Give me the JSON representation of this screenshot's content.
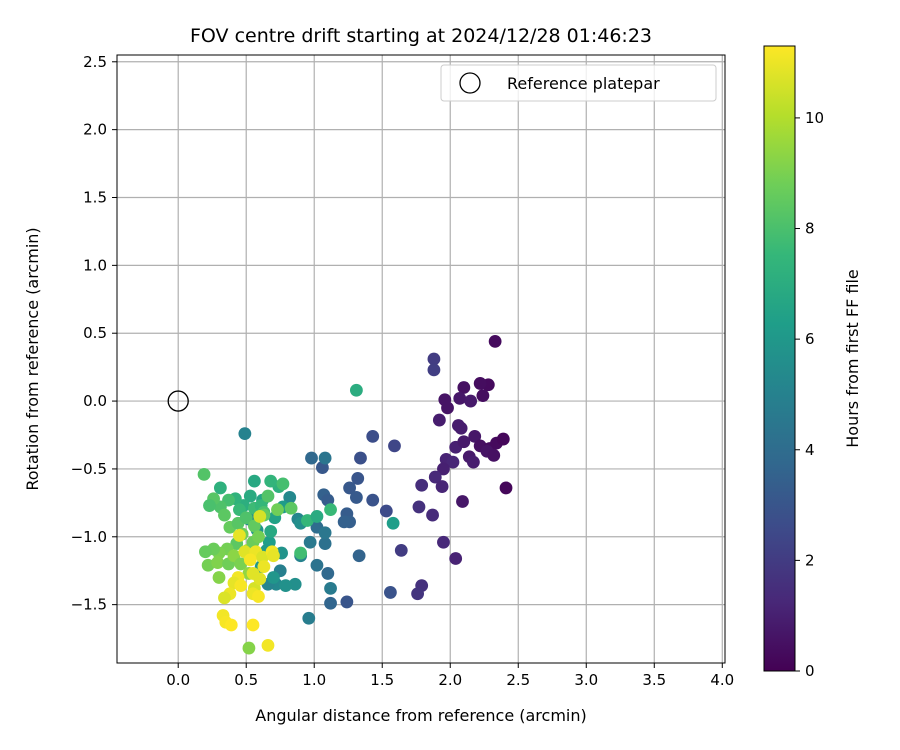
{
  "chart_data": {
    "type": "scatter",
    "title": "FOV centre drift starting at 2024/12/28 01:46:23",
    "xlabel": "Angular distance from reference (arcmin)",
    "ylabel": "Rotation from reference (arcmin)",
    "xlim": [
      -0.45,
      4.02
    ],
    "ylim": [
      -1.93,
      2.55
    ],
    "xticks": [
      0.0,
      0.5,
      1.0,
      1.5,
      2.0,
      2.5,
      3.0,
      3.5,
      4.0
    ],
    "xtick_labels": [
      "0.0",
      "0.5",
      "1.0",
      "1.5",
      "2.0",
      "2.5",
      "3.0",
      "3.5",
      "4.0"
    ],
    "yticks": [
      -1.5,
      -1.0,
      -0.5,
      0.0,
      0.5,
      1.0,
      1.5,
      2.0,
      2.5
    ],
    "ytick_labels": [
      "−1.5",
      "−1.0",
      "−0.5",
      "0.0",
      "0.5",
      "1.0",
      "1.5",
      "2.0",
      "2.5"
    ],
    "grid": true,
    "legend": {
      "position": "top-right",
      "entries": [
        "Reference platepar"
      ]
    },
    "reference_point": {
      "label": "Reference platepar",
      "x": 0.0,
      "y": 0.0
    },
    "colorbar": {
      "label": "Hours from first FF file",
      "colormap": "viridis",
      "range": [
        0,
        11.3
      ],
      "ticks": [
        0,
        2,
        4,
        6,
        8,
        10
      ],
      "tick_labels": [
        "0",
        "2",
        "4",
        "6",
        "8",
        "10"
      ]
    },
    "colormap_stops": [
      "#440154",
      "#482878",
      "#3e4989",
      "#31688e",
      "#26828e",
      "#1f9e89",
      "#35b779",
      "#6ece58",
      "#b5de2b",
      "#fde725"
    ],
    "series": [
      {
        "points": [
          [
            2.33,
            0.44,
            0.3
          ],
          [
            2.28,
            0.12,
            0.3
          ],
          [
            2.22,
            0.13,
            0.4
          ],
          [
            2.1,
            0.1,
            0.5
          ],
          [
            1.96,
            0.01,
            0.6
          ],
          [
            2.07,
            0.02,
            0.7
          ],
          [
            2.15,
            0.0,
            0.8
          ],
          [
            1.98,
            -0.05,
            0.6
          ],
          [
            2.24,
            0.04,
            0.4
          ],
          [
            1.92,
            -0.14,
            0.9
          ],
          [
            2.06,
            -0.18,
            0.9
          ],
          [
            2.18,
            -0.26,
            0.7
          ],
          [
            2.22,
            -0.33,
            0.5
          ],
          [
            2.29,
            -0.35,
            0.4
          ],
          [
            2.34,
            -0.31,
            0.3
          ],
          [
            2.39,
            -0.28,
            0.2
          ],
          [
            2.27,
            -0.37,
            0.6
          ],
          [
            2.32,
            -0.4,
            0.5
          ],
          [
            2.14,
            -0.41,
            0.8
          ],
          [
            2.17,
            -0.45,
            0.9
          ],
          [
            2.04,
            -0.34,
            1.0
          ],
          [
            2.1,
            -0.3,
            0.8
          ],
          [
            1.97,
            -0.43,
            1.1
          ],
          [
            2.02,
            -0.45,
            1.2
          ],
          [
            2.41,
            -0.64,
            0.2
          ],
          [
            2.08,
            -0.2,
            0.9
          ],
          [
            1.95,
            -0.5,
            1.0
          ],
          [
            1.89,
            -0.56,
            1.3
          ],
          [
            1.79,
            -0.62,
            1.5
          ],
          [
            1.94,
            -0.63,
            1.2
          ],
          [
            2.09,
            -0.74,
            0.7
          ],
          [
            1.77,
            -0.78,
            1.6
          ],
          [
            1.87,
            -0.84,
            1.4
          ],
          [
            1.95,
            -1.04,
            1.3
          ],
          [
            2.04,
            -1.16,
            1.1
          ],
          [
            1.79,
            -1.36,
            1.6
          ],
          [
            1.76,
            -1.42,
            1.7
          ],
          [
            1.88,
            0.31,
            2.0
          ],
          [
            1.88,
            0.23,
            2.1
          ],
          [
            1.64,
            -1.1,
            2.0
          ],
          [
            1.59,
            -0.33,
            2.4
          ],
          [
            1.43,
            -0.26,
            2.7
          ],
          [
            1.34,
            -0.42,
            2.8
          ],
          [
            1.32,
            -0.57,
            3.0
          ],
          [
            1.26,
            -0.64,
            3.1
          ],
          [
            1.31,
            -0.71,
            3.2
          ],
          [
            1.43,
            -0.73,
            2.9
          ],
          [
            1.53,
            -0.81,
            2.6
          ],
          [
            1.24,
            -0.83,
            3.3
          ],
          [
            1.26,
            -0.89,
            3.4
          ],
          [
            1.22,
            -0.89,
            3.5
          ],
          [
            1.33,
            -1.14,
            3.6
          ],
          [
            1.56,
            -1.41,
            2.9
          ],
          [
            1.24,
            -1.48,
            3.0
          ],
          [
            1.12,
            -1.49,
            3.7
          ],
          [
            1.1,
            -1.27,
            3.8
          ],
          [
            1.12,
            -1.38,
            4.7
          ],
          [
            1.08,
            -1.05,
            4.2
          ],
          [
            1.02,
            -0.93,
            4.0
          ],
          [
            1.07,
            -0.69,
            3.5
          ],
          [
            1.1,
            -0.73,
            3.3
          ],
          [
            1.06,
            -0.49,
            3.1
          ],
          [
            0.98,
            -0.42,
            3.8
          ],
          [
            1.08,
            -0.42,
            4.4
          ],
          [
            1.08,
            -0.97,
            4.5
          ],
          [
            1.02,
            -1.21,
            4.3
          ],
          [
            0.97,
            -1.04,
            4.6
          ],
          [
            0.9,
            -1.14,
            5.0
          ],
          [
            0.96,
            -1.6,
            4.8
          ],
          [
            0.86,
            -1.35,
            5.6
          ],
          [
            0.75,
            -1.25,
            4.9
          ],
          [
            0.72,
            -1.35,
            5.3
          ],
          [
            0.79,
            -1.36,
            5.7
          ],
          [
            0.66,
            -1.35,
            5.1
          ],
          [
            0.7,
            -1.3,
            5.9
          ],
          [
            0.61,
            -1.22,
            6.0
          ],
          [
            0.76,
            -1.12,
            5.8
          ],
          [
            0.67,
            -1.04,
            6.3
          ],
          [
            0.65,
            -1.1,
            6.1
          ],
          [
            0.88,
            -0.87,
            5.2
          ],
          [
            0.9,
            -0.9,
            5.6
          ],
          [
            0.82,
            -0.71,
            5.3
          ],
          [
            0.77,
            -0.78,
            6.2
          ],
          [
            0.71,
            -0.86,
            6.5
          ],
          [
            0.68,
            -0.96,
            6.8
          ],
          [
            0.58,
            -0.95,
            5.9
          ],
          [
            0.52,
            -0.87,
            5.4
          ],
          [
            0.62,
            -0.73,
            6.6
          ],
          [
            0.49,
            -0.24,
            5.0
          ],
          [
            0.56,
            -0.59,
            6.8
          ],
          [
            0.74,
            -0.63,
            7.2
          ],
          [
            0.68,
            -0.59,
            7.4
          ],
          [
            0.77,
            -0.61,
            7.9
          ],
          [
            1.31,
            0.08,
            7.0
          ],
          [
            1.58,
            -0.9,
            6.3
          ],
          [
            1.12,
            -0.8,
            7.6
          ],
          [
            0.95,
            -0.88,
            7.5
          ],
          [
            1.02,
            -0.85,
            6.9
          ],
          [
            0.9,
            -1.12,
            7.8
          ],
          [
            0.53,
            -0.7,
            6.9
          ],
          [
            0.48,
            -0.77,
            7.1
          ],
          [
            0.42,
            -0.72,
            7.3
          ],
          [
            0.45,
            -0.8,
            7.6
          ],
          [
            0.37,
            -0.73,
            7.9
          ],
          [
            0.31,
            -0.78,
            8.1
          ],
          [
            0.26,
            -0.72,
            8.3
          ],
          [
            0.23,
            -0.77,
            8.0
          ],
          [
            0.19,
            -0.54,
            8.2
          ],
          [
            0.31,
            -0.64,
            7.2
          ],
          [
            0.34,
            -0.84,
            8.4
          ],
          [
            0.38,
            -0.93,
            8.6
          ],
          [
            0.44,
            -0.9,
            8.3
          ],
          [
            0.5,
            -0.86,
            8.1
          ],
          [
            0.56,
            -0.79,
            7.7
          ],
          [
            0.61,
            -0.77,
            7.5
          ],
          [
            0.63,
            -0.82,
            8.0
          ],
          [
            0.56,
            -0.92,
            8.5
          ],
          [
            0.47,
            -0.98,
            8.8
          ],
          [
            0.43,
            -1.05,
            8.4
          ],
          [
            0.36,
            -1.09,
            8.9
          ],
          [
            0.3,
            -1.12,
            9.0
          ],
          [
            0.26,
            -1.09,
            8.7
          ],
          [
            0.2,
            -1.11,
            8.6
          ],
          [
            0.22,
            -1.21,
            8.9
          ],
          [
            0.29,
            -1.19,
            9.1
          ],
          [
            0.3,
            -1.3,
            9.2
          ],
          [
            0.37,
            -1.2,
            8.8
          ],
          [
            0.41,
            -1.14,
            9.3
          ],
          [
            0.46,
            -1.2,
            9.0
          ],
          [
            0.52,
            -1.27,
            9.4
          ],
          [
            0.51,
            -1.1,
            9.6
          ],
          [
            0.55,
            -1.04,
            8.7
          ],
          [
            0.59,
            -1.0,
            8.9
          ],
          [
            0.63,
            -0.84,
            8.5
          ],
          [
            0.66,
            -0.7,
            8.2
          ],
          [
            0.73,
            -0.8,
            8.8
          ],
          [
            0.83,
            -0.79,
            8.4
          ],
          [
            0.52,
            -1.82,
            9.2
          ],
          [
            0.6,
            -0.85,
            10.6
          ],
          [
            0.49,
            -1.11,
            10.8
          ],
          [
            0.45,
            -0.99,
            10.9
          ],
          [
            0.57,
            -1.11,
            11.0
          ],
          [
            0.62,
            -1.15,
            10.7
          ],
          [
            0.69,
            -1.11,
            11.1
          ],
          [
            0.7,
            -1.14,
            10.9
          ],
          [
            0.53,
            -1.17,
            11.2
          ],
          [
            0.63,
            -1.22,
            11.0
          ],
          [
            0.55,
            -1.27,
            10.8
          ],
          [
            0.44,
            -1.3,
            11.1
          ],
          [
            0.41,
            -1.34,
            10.9
          ],
          [
            0.46,
            -1.36,
            11.2
          ],
          [
            0.38,
            -1.42,
            11.0
          ],
          [
            0.34,
            -1.45,
            10.7
          ],
          [
            0.33,
            -1.58,
            11.1
          ],
          [
            0.35,
            -1.63,
            11.2
          ],
          [
            0.39,
            -1.65,
            11.3
          ],
          [
            0.56,
            -1.38,
            10.6
          ],
          [
            0.6,
            -1.31,
            10.8
          ],
          [
            0.55,
            -1.42,
            11.0
          ],
          [
            0.59,
            -1.44,
            11.2
          ],
          [
            0.55,
            -1.65,
            11.3
          ],
          [
            0.66,
            -1.8,
            11.1
          ]
        ]
      }
    ]
  }
}
